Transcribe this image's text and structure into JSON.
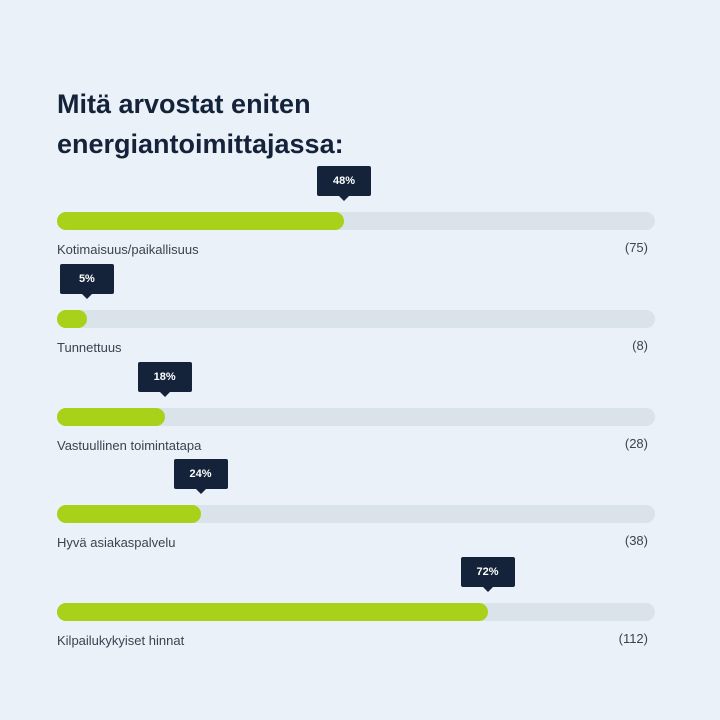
{
  "chart_data": {
    "type": "bar",
    "title": "Mitä arvostat eniten energiantoimittajassa:",
    "categories": [
      "Kotimaisuus/paikallisuus",
      "Tunnettuus",
      "Vastuullinen toimintatapa",
      "Hyvä asiakaspalvelu",
      "Kilpailukykyiset hinnat"
    ],
    "values": [
      48,
      5,
      18,
      24,
      72
    ],
    "value_labels": [
      "48%",
      "5%",
      "18%",
      "24%",
      "72%"
    ],
    "counts": [
      "(75)",
      "(8)",
      "(28)",
      "(38)",
      "(112)"
    ],
    "ylim": [
      0,
      100
    ],
    "colors": {
      "fill": "#a8d11a",
      "track": "#dbe3ea",
      "tooltip": "#14233a"
    }
  }
}
